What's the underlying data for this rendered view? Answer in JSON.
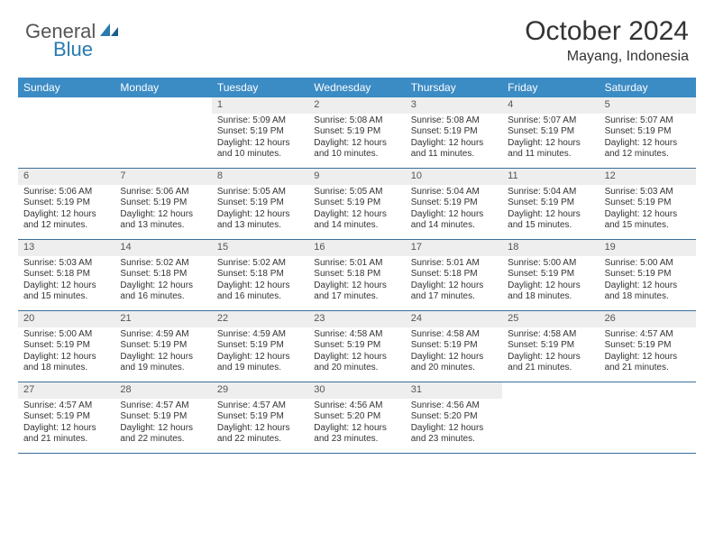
{
  "logo": {
    "word1": "General",
    "word2": "Blue"
  },
  "title": "October 2024",
  "location": "Mayang, Indonesia",
  "colors": {
    "header_bg": "#3b8bc4",
    "header_text": "#ffffff",
    "daynum_bg": "#eeeeee",
    "week_border": "#3b6f9a",
    "text": "#333333",
    "logo_blue": "#2a7ab0"
  },
  "day_names": [
    "Sunday",
    "Monday",
    "Tuesday",
    "Wednesday",
    "Thursday",
    "Friday",
    "Saturday"
  ],
  "weeks": [
    [
      {
        "n": "",
        "sr": "",
        "ss": "",
        "dl": ""
      },
      {
        "n": "",
        "sr": "",
        "ss": "",
        "dl": ""
      },
      {
        "n": "1",
        "sr": "Sunrise: 5:09 AM",
        "ss": "Sunset: 5:19 PM",
        "dl": "Daylight: 12 hours and 10 minutes."
      },
      {
        "n": "2",
        "sr": "Sunrise: 5:08 AM",
        "ss": "Sunset: 5:19 PM",
        "dl": "Daylight: 12 hours and 10 minutes."
      },
      {
        "n": "3",
        "sr": "Sunrise: 5:08 AM",
        "ss": "Sunset: 5:19 PM",
        "dl": "Daylight: 12 hours and 11 minutes."
      },
      {
        "n": "4",
        "sr": "Sunrise: 5:07 AM",
        "ss": "Sunset: 5:19 PM",
        "dl": "Daylight: 12 hours and 11 minutes."
      },
      {
        "n": "5",
        "sr": "Sunrise: 5:07 AM",
        "ss": "Sunset: 5:19 PM",
        "dl": "Daylight: 12 hours and 12 minutes."
      }
    ],
    [
      {
        "n": "6",
        "sr": "Sunrise: 5:06 AM",
        "ss": "Sunset: 5:19 PM",
        "dl": "Daylight: 12 hours and 12 minutes."
      },
      {
        "n": "7",
        "sr": "Sunrise: 5:06 AM",
        "ss": "Sunset: 5:19 PM",
        "dl": "Daylight: 12 hours and 13 minutes."
      },
      {
        "n": "8",
        "sr": "Sunrise: 5:05 AM",
        "ss": "Sunset: 5:19 PM",
        "dl": "Daylight: 12 hours and 13 minutes."
      },
      {
        "n": "9",
        "sr": "Sunrise: 5:05 AM",
        "ss": "Sunset: 5:19 PM",
        "dl": "Daylight: 12 hours and 14 minutes."
      },
      {
        "n": "10",
        "sr": "Sunrise: 5:04 AM",
        "ss": "Sunset: 5:19 PM",
        "dl": "Daylight: 12 hours and 14 minutes."
      },
      {
        "n": "11",
        "sr": "Sunrise: 5:04 AM",
        "ss": "Sunset: 5:19 PM",
        "dl": "Daylight: 12 hours and 15 minutes."
      },
      {
        "n": "12",
        "sr": "Sunrise: 5:03 AM",
        "ss": "Sunset: 5:19 PM",
        "dl": "Daylight: 12 hours and 15 minutes."
      }
    ],
    [
      {
        "n": "13",
        "sr": "Sunrise: 5:03 AM",
        "ss": "Sunset: 5:18 PM",
        "dl": "Daylight: 12 hours and 15 minutes."
      },
      {
        "n": "14",
        "sr": "Sunrise: 5:02 AM",
        "ss": "Sunset: 5:18 PM",
        "dl": "Daylight: 12 hours and 16 minutes."
      },
      {
        "n": "15",
        "sr": "Sunrise: 5:02 AM",
        "ss": "Sunset: 5:18 PM",
        "dl": "Daylight: 12 hours and 16 minutes."
      },
      {
        "n": "16",
        "sr": "Sunrise: 5:01 AM",
        "ss": "Sunset: 5:18 PM",
        "dl": "Daylight: 12 hours and 17 minutes."
      },
      {
        "n": "17",
        "sr": "Sunrise: 5:01 AM",
        "ss": "Sunset: 5:18 PM",
        "dl": "Daylight: 12 hours and 17 minutes."
      },
      {
        "n": "18",
        "sr": "Sunrise: 5:00 AM",
        "ss": "Sunset: 5:19 PM",
        "dl": "Daylight: 12 hours and 18 minutes."
      },
      {
        "n": "19",
        "sr": "Sunrise: 5:00 AM",
        "ss": "Sunset: 5:19 PM",
        "dl": "Daylight: 12 hours and 18 minutes."
      }
    ],
    [
      {
        "n": "20",
        "sr": "Sunrise: 5:00 AM",
        "ss": "Sunset: 5:19 PM",
        "dl": "Daylight: 12 hours and 18 minutes."
      },
      {
        "n": "21",
        "sr": "Sunrise: 4:59 AM",
        "ss": "Sunset: 5:19 PM",
        "dl": "Daylight: 12 hours and 19 minutes."
      },
      {
        "n": "22",
        "sr": "Sunrise: 4:59 AM",
        "ss": "Sunset: 5:19 PM",
        "dl": "Daylight: 12 hours and 19 minutes."
      },
      {
        "n": "23",
        "sr": "Sunrise: 4:58 AM",
        "ss": "Sunset: 5:19 PM",
        "dl": "Daylight: 12 hours and 20 minutes."
      },
      {
        "n": "24",
        "sr": "Sunrise: 4:58 AM",
        "ss": "Sunset: 5:19 PM",
        "dl": "Daylight: 12 hours and 20 minutes."
      },
      {
        "n": "25",
        "sr": "Sunrise: 4:58 AM",
        "ss": "Sunset: 5:19 PM",
        "dl": "Daylight: 12 hours and 21 minutes."
      },
      {
        "n": "26",
        "sr": "Sunrise: 4:57 AM",
        "ss": "Sunset: 5:19 PM",
        "dl": "Daylight: 12 hours and 21 minutes."
      }
    ],
    [
      {
        "n": "27",
        "sr": "Sunrise: 4:57 AM",
        "ss": "Sunset: 5:19 PM",
        "dl": "Daylight: 12 hours and 21 minutes."
      },
      {
        "n": "28",
        "sr": "Sunrise: 4:57 AM",
        "ss": "Sunset: 5:19 PM",
        "dl": "Daylight: 12 hours and 22 minutes."
      },
      {
        "n": "29",
        "sr": "Sunrise: 4:57 AM",
        "ss": "Sunset: 5:19 PM",
        "dl": "Daylight: 12 hours and 22 minutes."
      },
      {
        "n": "30",
        "sr": "Sunrise: 4:56 AM",
        "ss": "Sunset: 5:20 PM",
        "dl": "Daylight: 12 hours and 23 minutes."
      },
      {
        "n": "31",
        "sr": "Sunrise: 4:56 AM",
        "ss": "Sunset: 5:20 PM",
        "dl": "Daylight: 12 hours and 23 minutes."
      },
      {
        "n": "",
        "sr": "",
        "ss": "",
        "dl": ""
      },
      {
        "n": "",
        "sr": "",
        "ss": "",
        "dl": ""
      }
    ]
  ]
}
